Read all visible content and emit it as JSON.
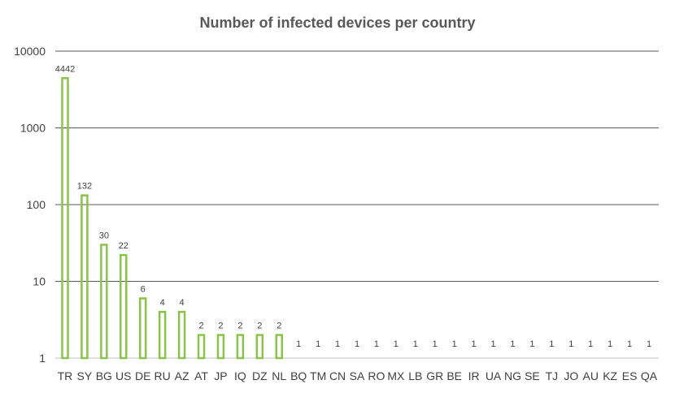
{
  "chart_data": {
    "type": "bar",
    "title": "Number of infected devices per country",
    "xlabel": "",
    "ylabel": "",
    "yscale": "log",
    "ylim": [
      1,
      10000
    ],
    "yticks": [
      1,
      10,
      100,
      1000,
      10000
    ],
    "grid": true,
    "categories": [
      "TR",
      "SY",
      "BG",
      "US",
      "DE",
      "RU",
      "AZ",
      "AT",
      "JP",
      "IQ",
      "DZ",
      "NL",
      "BQ",
      "TM",
      "CN",
      "SA",
      "RO",
      "MX",
      "LB",
      "GR",
      "BE",
      "IR",
      "UA",
      "NG",
      "SE",
      "TJ",
      "JO",
      "AU",
      "KZ",
      "ES",
      "QA"
    ],
    "values": [
      4442,
      132,
      30,
      22,
      6,
      4,
      4,
      2,
      2,
      2,
      2,
      2,
      1,
      1,
      1,
      1,
      1,
      1,
      1,
      1,
      1,
      1,
      1,
      1,
      1,
      1,
      1,
      1,
      1,
      1,
      1
    ],
    "colors": {
      "bar_stroke": "#8BC34A",
      "gridline": "#595959",
      "axis": "#bfbfbf"
    }
  }
}
